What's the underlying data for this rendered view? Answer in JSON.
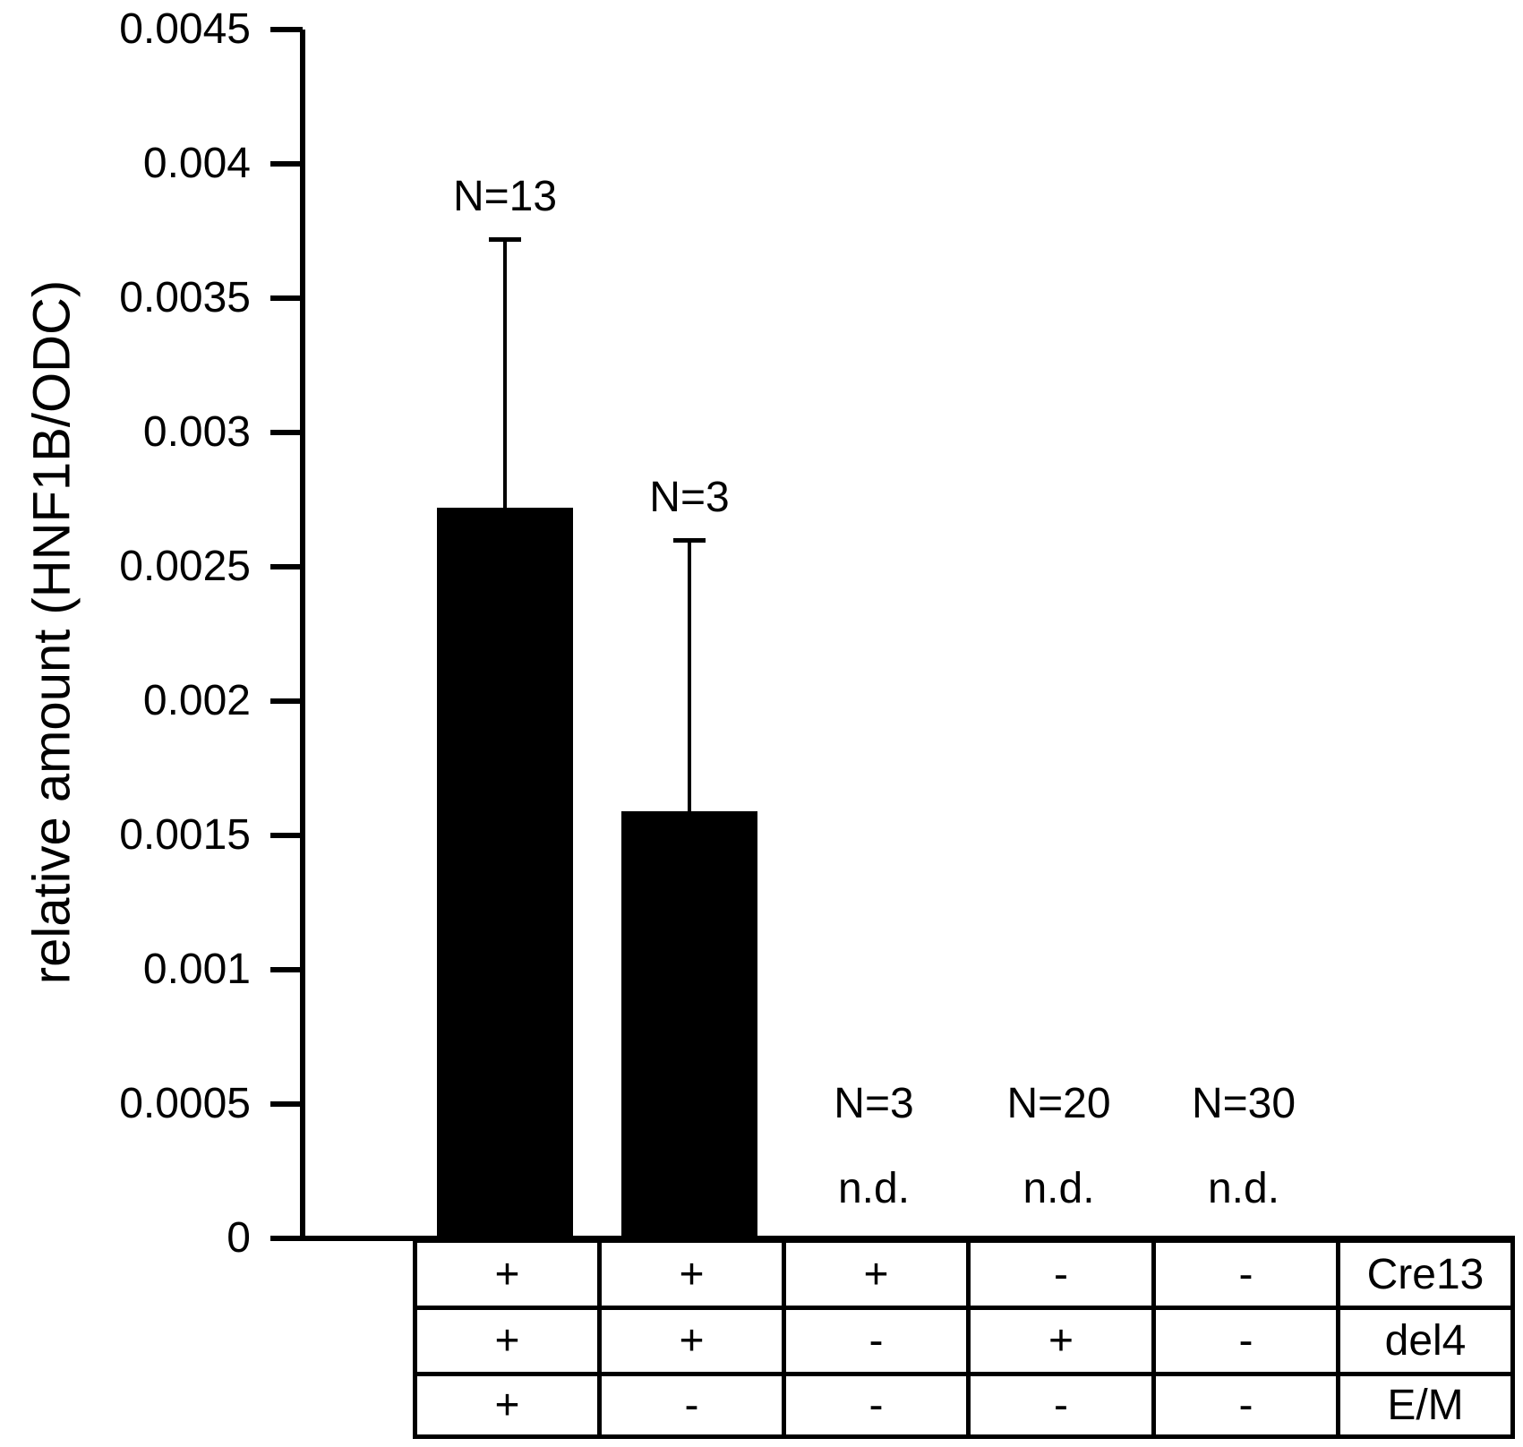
{
  "figure": {
    "background": "#ffffff",
    "ink_color": "#000000"
  },
  "chart_data": {
    "type": "bar",
    "title": "",
    "xlabel": "",
    "ylabel": "relative amount (HNF1B/ODC)",
    "ylim": [
      0,
      0.0045
    ],
    "grid": false,
    "legend": null,
    "bar_color": "#000000",
    "yticks": [
      {
        "value": 0,
        "label": "0"
      },
      {
        "value": 0.0005,
        "label": "0.0005"
      },
      {
        "value": 0.001,
        "label": "0.001"
      },
      {
        "value": 0.0015,
        "label": "0.0015"
      },
      {
        "value": 0.002,
        "label": "0.002"
      },
      {
        "value": 0.0025,
        "label": "0.0025"
      },
      {
        "value": 0.003,
        "label": "0.003"
      },
      {
        "value": 0.0035,
        "label": "0.0035"
      },
      {
        "value": 0.004,
        "label": "0.004"
      },
      {
        "value": 0.0045,
        "label": "0.0045"
      }
    ],
    "columns": [
      {
        "n_label": "N=13",
        "value": 0.00272,
        "error_plus": 0.001,
        "nd": false
      },
      {
        "n_label": "N=3",
        "value": 0.00159,
        "error_plus": 0.00101,
        "nd": false
      },
      {
        "n_label": "N=3",
        "value": null,
        "error_plus": null,
        "nd": true
      },
      {
        "n_label": "N=20",
        "value": null,
        "error_plus": null,
        "nd": true
      },
      {
        "n_label": "N=30",
        "value": null,
        "error_plus": null,
        "nd": true
      }
    ],
    "nd_text": "n.d.",
    "condition_table": {
      "row_labels": [
        "Cre13",
        "del4",
        "E/M"
      ],
      "values": [
        [
          "+",
          "+",
          "+",
          "-",
          "-"
        ],
        [
          "+",
          "+",
          "-",
          "+",
          "-"
        ],
        [
          "+",
          "-",
          "-",
          "-",
          "-"
        ]
      ]
    }
  }
}
